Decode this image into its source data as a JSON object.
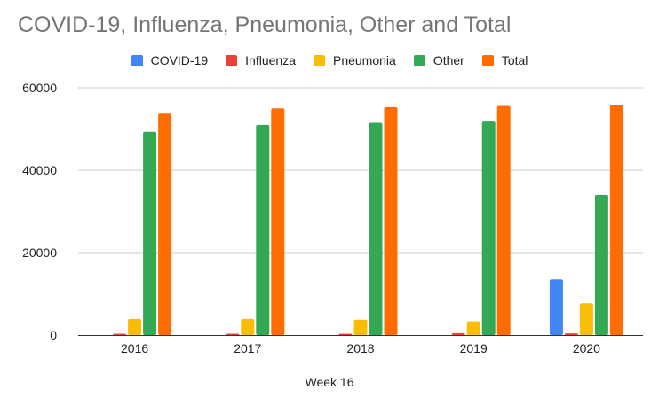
{
  "chart_data": {
    "type": "bar",
    "title": "COVID-19, Influenza, Pneumonia, Other and Total",
    "xlabel": "Week 16",
    "ylabel": "",
    "categories": [
      "2016",
      "2017",
      "2018",
      "2019",
      "2020"
    ],
    "ylim": [
      0,
      60000
    ],
    "yticks": [
      0,
      20000,
      40000,
      60000
    ],
    "ytick_labels": [
      "0",
      "20000",
      "40000",
      "60000"
    ],
    "grid": true,
    "legend_position": "top",
    "series": [
      {
        "name": "COVID-19",
        "color": "#4285f4",
        "values": [
          0,
          0,
          0,
          0,
          13500
        ]
      },
      {
        "name": "Influenza",
        "color": "#ea4335",
        "values": [
          50,
          50,
          60,
          450,
          400
        ]
      },
      {
        "name": "Pneumonia",
        "color": "#fbbc04",
        "values": [
          3900,
          3900,
          3700,
          3300,
          7700
        ]
      },
      {
        "name": "Other",
        "color": "#34a853",
        "values": [
          49300,
          51000,
          51500,
          51800,
          34000
        ]
      },
      {
        "name": "Total",
        "color": "#ff6d01",
        "values": [
          53700,
          55000,
          55300,
          55600,
          55800
        ]
      }
    ]
  }
}
